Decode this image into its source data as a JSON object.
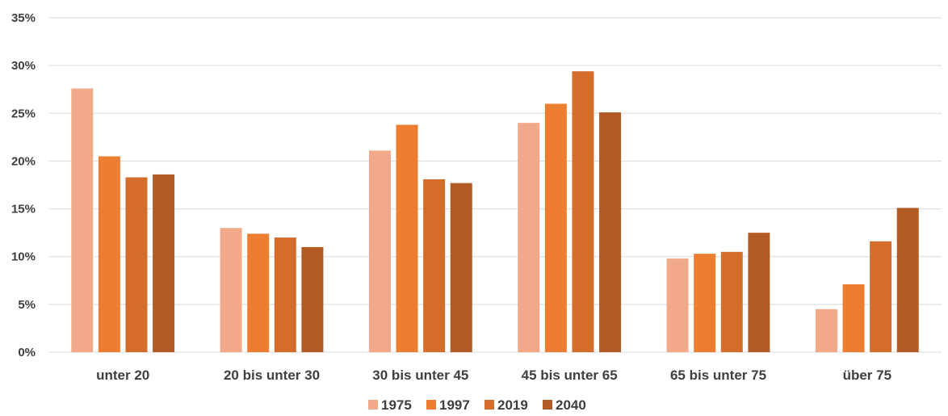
{
  "chart_data": {
    "type": "bar",
    "categories": [
      "unter 20",
      "20 bis unter 30",
      "30 bis unter 45",
      "45 bis unter 65",
      "65 bis unter 75",
      "über 75"
    ],
    "series": [
      {
        "name": "1975",
        "color": "#f2a98a",
        "values": [
          27.6,
          13.0,
          21.1,
          24.0,
          9.8,
          4.5
        ]
      },
      {
        "name": "1997",
        "color": "#ed7d31",
        "values": [
          20.5,
          12.4,
          23.8,
          26.0,
          10.3,
          7.1
        ]
      },
      {
        "name": "2019",
        "color": "#d46d2c",
        "values": [
          18.3,
          12.0,
          18.1,
          29.4,
          10.5,
          11.6
        ]
      },
      {
        "name": "2040",
        "color": "#b35b24",
        "values": [
          18.6,
          11.0,
          17.7,
          25.1,
          12.5,
          15.1
        ]
      }
    ],
    "y_ticks": [
      "0%",
      "5%",
      "10%",
      "15%",
      "20%",
      "25%",
      "30%",
      "35%"
    ],
    "ylim": [
      0,
      35
    ],
    "y_step": 5,
    "grid": true,
    "legend_position": "bottom"
  }
}
